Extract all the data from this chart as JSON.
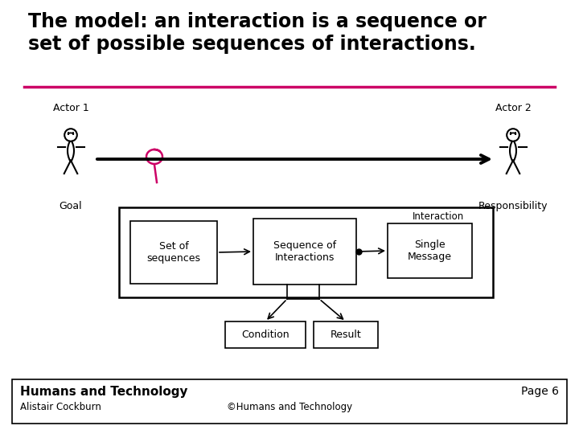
{
  "title_line1": "The model: an interaction is a sequence or",
  "title_line2": "set of possible sequences of interactions.",
  "title_fontsize": 17,
  "divider_color": "#cc0066",
  "actor1_label": "Actor 1",
  "actor2_label": "Actor 2",
  "goal_label": "Goal",
  "responsibility_label": "Responsibility",
  "box_labels": [
    "Set of\nsequences",
    "Sequence of\nInteractions",
    "Single\nMessage"
  ],
  "interaction_label": "Interaction",
  "condition_label": "Condition",
  "result_label": "Result",
  "footer_left_bold": "Humans and Technology",
  "footer_left_small": "Alistair Cockburn",
  "footer_center": "©Humans and Technology",
  "footer_right": "Page 6",
  "bg_color": "#ffffff",
  "text_color": "#000000",
  "magenta": "#cc0066"
}
